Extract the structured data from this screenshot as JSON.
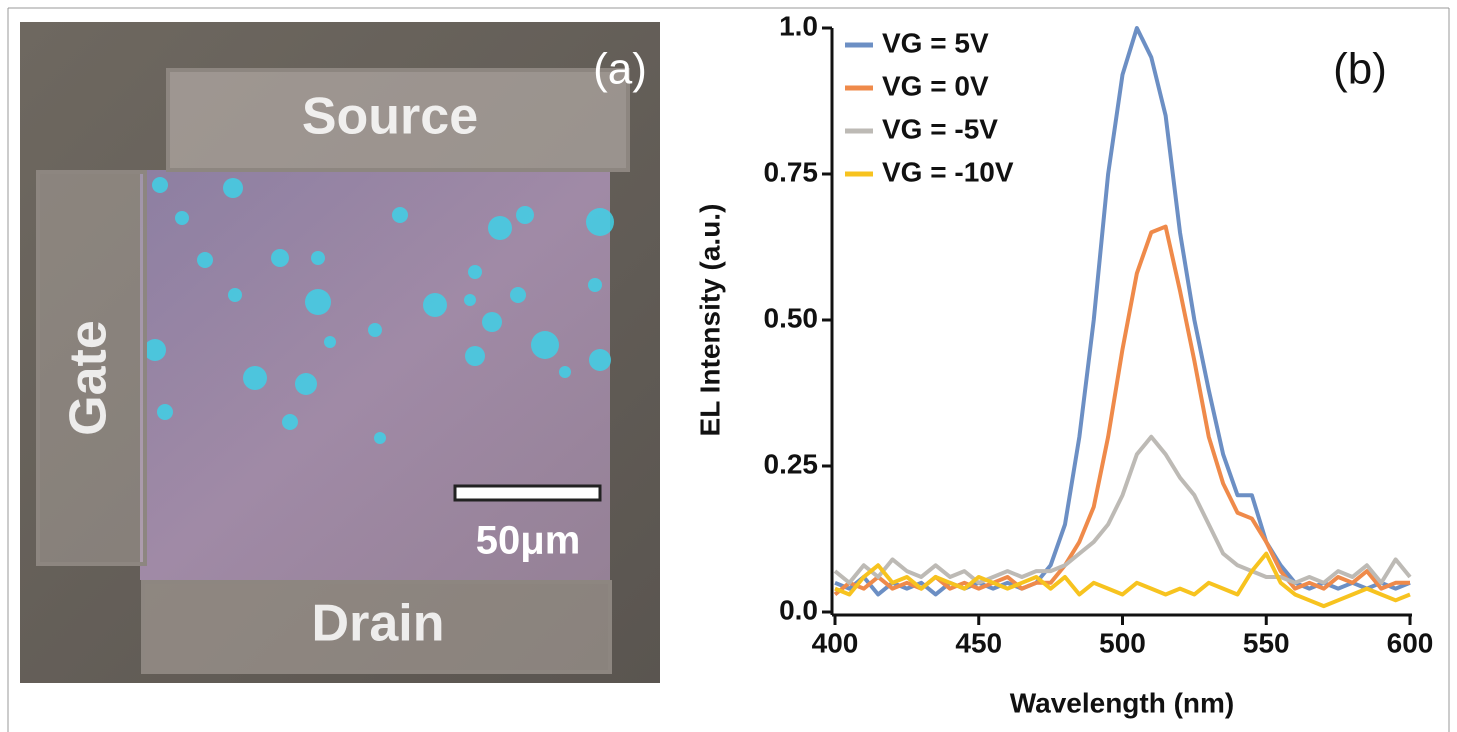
{
  "panel_a": {
    "label": "(a)",
    "source": "Source",
    "gate": "Gate",
    "drain": "Drain",
    "scale_bar": "50μm"
  },
  "chart_data": {
    "type": "line",
    "panel_label": "(b)",
    "x_label": "Wavelength (nm)",
    "y_label": "EL Intensity (a.u.)",
    "x": [
      400,
      405,
      410,
      415,
      420,
      425,
      430,
      435,
      440,
      445,
      450,
      455,
      460,
      465,
      470,
      475,
      480,
      485,
      490,
      495,
      500,
      505,
      510,
      515,
      520,
      525,
      530,
      535,
      540,
      545,
      550,
      555,
      560,
      565,
      570,
      575,
      580,
      585,
      590,
      595,
      600
    ],
    "xlim": [
      400,
      600
    ],
    "xticks": [
      400,
      450,
      500,
      550,
      600
    ],
    "ylim": [
      0,
      1
    ],
    "yticks": [
      {
        "value": 0,
        "label": "0.0"
      },
      0.25,
      {
        "value": 0.5,
        "label": "0.50"
      },
      0.75,
      {
        "value": 1,
        "label": "1.0"
      }
    ],
    "series": [
      {
        "name": "VG = 5V",
        "color": "#6c8fc4",
        "values": [
          0.05,
          0.04,
          0.06,
          0.03,
          0.05,
          0.04,
          0.05,
          0.03,
          0.05,
          0.04,
          0.05,
          0.04,
          0.05,
          0.04,
          0.05,
          0.08,
          0.15,
          0.3,
          0.5,
          0.75,
          0.92,
          1.0,
          0.95,
          0.85,
          0.65,
          0.5,
          0.38,
          0.27,
          0.2,
          0.2,
          0.12,
          0.08,
          0.05,
          0.04,
          0.05,
          0.04,
          0.05,
          0.04,
          0.05,
          0.04,
          0.05
        ]
      },
      {
        "name": "VG = 0V",
        "color": "#ef8a4a",
        "values": [
          0.03,
          0.05,
          0.04,
          0.06,
          0.04,
          0.05,
          0.04,
          0.06,
          0.04,
          0.05,
          0.04,
          0.05,
          0.06,
          0.04,
          0.05,
          0.05,
          0.08,
          0.12,
          0.18,
          0.3,
          0.45,
          0.58,
          0.65,
          0.66,
          0.55,
          0.43,
          0.3,
          0.22,
          0.17,
          0.16,
          0.12,
          0.07,
          0.04,
          0.05,
          0.04,
          0.06,
          0.05,
          0.07,
          0.04,
          0.05,
          0.05
        ]
      },
      {
        "name": "VG = -5V",
        "color": "#bdbab5",
        "values": [
          0.07,
          0.05,
          0.08,
          0.06,
          0.09,
          0.07,
          0.06,
          0.08,
          0.06,
          0.07,
          0.05,
          0.06,
          0.07,
          0.06,
          0.07,
          0.07,
          0.08,
          0.1,
          0.12,
          0.15,
          0.2,
          0.27,
          0.3,
          0.27,
          0.23,
          0.2,
          0.15,
          0.1,
          0.08,
          0.07,
          0.06,
          0.06,
          0.05,
          0.06,
          0.05,
          0.07,
          0.06,
          0.08,
          0.05,
          0.09,
          0.06
        ]
      },
      {
        "name": "VG = -10V",
        "color": "#f7c31f",
        "values": [
          0.04,
          0.03,
          0.06,
          0.08,
          0.05,
          0.06,
          0.04,
          0.06,
          0.05,
          0.04,
          0.06,
          0.05,
          0.04,
          0.05,
          0.06,
          0.04,
          0.06,
          0.03,
          0.05,
          0.04,
          0.03,
          0.05,
          0.04,
          0.03,
          0.04,
          0.03,
          0.05,
          0.04,
          0.03,
          0.07,
          0.1,
          0.05,
          0.03,
          0.02,
          0.01,
          0.02,
          0.03,
          0.04,
          0.03,
          0.02,
          0.03
        ]
      }
    ]
  }
}
